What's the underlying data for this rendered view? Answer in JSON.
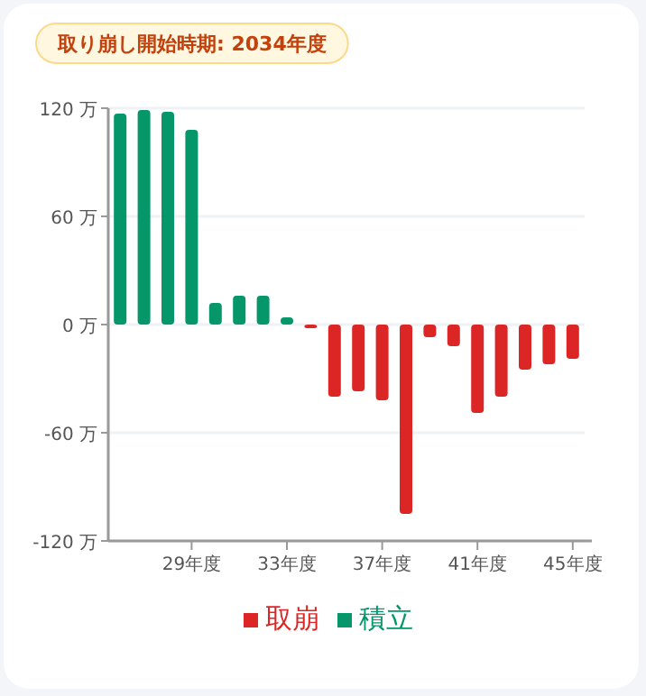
{
  "chart_data": {
    "type": "bar",
    "title": "取り崩し開始時期: 2034年度",
    "categories": [
      null,
      null,
      null,
      "29年度",
      null,
      null,
      null,
      "33年度",
      null,
      null,
      null,
      "37年度",
      null,
      null,
      null,
      "41年度",
      null,
      null,
      null,
      "45年度"
    ],
    "series": [
      {
        "name": "取崩",
        "color": "#dc2626",
        "values": [
          null,
          null,
          null,
          null,
          null,
          null,
          null,
          null,
          -2,
          -40,
          -37,
          -42,
          -105,
          -7,
          -12,
          -49,
          -40,
          -25,
          -22,
          -19
        ]
      },
      {
        "name": "積立",
        "color": "#059669",
        "values": [
          117,
          119,
          118,
          108,
          12,
          16,
          16,
          4,
          null,
          null,
          null,
          null,
          null,
          null,
          null,
          null,
          null,
          null,
          null,
          null
        ]
      }
    ],
    "stacked": true,
    "ylim": [
      -120,
      120
    ],
    "yticks": [
      {
        "value": -120,
        "label": "-120 万"
      },
      {
        "value": -60,
        "label": "-60 万"
      },
      {
        "value": 0,
        "label": "0 万"
      },
      {
        "value": 60,
        "label": "60 万"
      },
      {
        "value": 120,
        "label": "120 万"
      }
    ],
    "grid": "y",
    "legend": "bottom"
  }
}
